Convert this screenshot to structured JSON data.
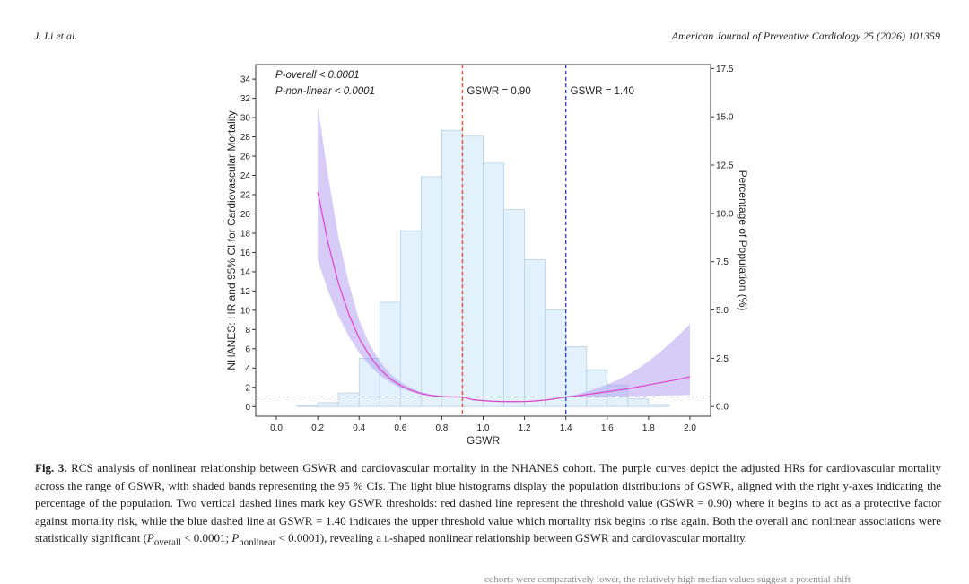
{
  "header": {
    "authors": "J. Li et al.",
    "journal": "American Journal of Preventive Cardiology 25 (2026) 101359"
  },
  "chart_data": {
    "type": "line",
    "xlabel": "GSWR",
    "ylabel_left": "NHANES: HR and 95% CI for Cardiovascular Mortality",
    "ylabel_right": "Percentage of Population (%)",
    "x_ticks": [
      "0.0",
      "0.2",
      "0.4",
      "0.6",
      "0.8",
      "1.0",
      "1.2",
      "1.4",
      "1.6",
      "1.8",
      "2.0"
    ],
    "y_left_ticks": [
      "0",
      "2",
      "4",
      "6",
      "8",
      "10",
      "12",
      "14",
      "16",
      "18",
      "20",
      "22",
      "24",
      "26",
      "28",
      "30",
      "32",
      "34"
    ],
    "y_right_ticks": [
      "0.0",
      "2.5",
      "5.0",
      "7.5",
      "10.0",
      "12.5",
      "15.0",
      "17.5"
    ],
    "xlim": [
      -0.1,
      2.1
    ],
    "ylim_left": [
      -1,
      35.5
    ],
    "ylim_right": [
      -0.5,
      17.7
    ],
    "annotations": {
      "p_overall": "P-overall < 0.0001",
      "p_nonlinear": "P-non-linear < 0.0001",
      "threshold_low_label": "GSWR = 0.90",
      "threshold_high_label": "GSWR = 1.40"
    },
    "thresholds": [
      {
        "x": 0.9,
        "color": "#d9552c",
        "label": "GSWR = 0.90"
      },
      {
        "x": 1.4,
        "color": "#3344cc",
        "label": "GSWR = 1.40"
      }
    ],
    "reference_hr": 1,
    "histogram": {
      "bin_edges": [
        0.1,
        0.2,
        0.3,
        0.4,
        0.5,
        0.6,
        0.7,
        0.8,
        0.9,
        1.0,
        1.1,
        1.2,
        1.3,
        1.4,
        1.5,
        1.6,
        1.7,
        1.8,
        1.9
      ],
      "percent": [
        0.05,
        0.2,
        0.7,
        2.5,
        5.4,
        9.1,
        11.9,
        14.3,
        14.0,
        12.6,
        10.2,
        7.6,
        5.0,
        3.1,
        1.9,
        1.1,
        0.4,
        0.1
      ]
    },
    "series": [
      {
        "name": "HR",
        "color": "#e040c8",
        "x": [
          0.2,
          0.25,
          0.3,
          0.35,
          0.4,
          0.45,
          0.5,
          0.55,
          0.6,
          0.65,
          0.7,
          0.75,
          0.8,
          0.85,
          0.9,
          0.95,
          1.0,
          1.05,
          1.1,
          1.15,
          1.2,
          1.25,
          1.3,
          1.35,
          1.4,
          1.45,
          1.5,
          1.55,
          1.6,
          1.65,
          1.7,
          1.75,
          1.8,
          1.85,
          1.9,
          1.95,
          2.0
        ],
        "y": [
          22.3,
          17.0,
          12.8,
          9.6,
          7.1,
          5.3,
          3.9,
          2.9,
          2.2,
          1.7,
          1.35,
          1.15,
          1.05,
          1.0,
          1.0,
          0.72,
          0.62,
          0.55,
          0.52,
          0.51,
          0.52,
          0.58,
          0.68,
          0.82,
          1.0,
          1.1,
          1.25,
          1.4,
          1.55,
          1.7,
          1.85,
          2.05,
          2.25,
          2.45,
          2.65,
          2.85,
          3.1
        ],
        "lower": [
          15.2,
          12.0,
          9.4,
          7.3,
          5.6,
          4.3,
          3.3,
          2.5,
          1.95,
          1.55,
          1.25,
          1.08,
          1.0,
          0.98,
          1.0,
          0.66,
          0.56,
          0.49,
          0.46,
          0.45,
          0.47,
          0.52,
          0.61,
          0.75,
          0.95,
          0.98,
          1.0,
          1.03,
          1.05,
          1.07,
          1.08,
          1.1,
          1.12,
          1.14,
          1.16,
          1.18,
          1.2
        ],
        "upper": [
          31.2,
          24.0,
          17.6,
          12.8,
          9.0,
          6.5,
          4.7,
          3.4,
          2.55,
          1.95,
          1.5,
          1.25,
          1.12,
          1.04,
          1.0,
          0.78,
          0.68,
          0.61,
          0.58,
          0.58,
          0.58,
          0.64,
          0.75,
          0.9,
          1.05,
          1.25,
          1.55,
          1.9,
          2.3,
          2.75,
          3.3,
          3.95,
          4.7,
          5.55,
          6.5,
          7.5,
          8.6
        ]
      }
    ]
  },
  "caption": {
    "label": "Fig. 3.",
    "text1": "RCS analysis of nonlinear relationship between GSWR and cardiovascular mortality in the NHANES cohort. The purple curves depict the adjusted HRs for cardiovascular mortality across the range of GSWR, with shaded bands representing the 95 % CIs. The light blue histograms display the population distributions of GSWR, aligned with the right y-axes indicating the percentage of the population. Two vertical dashed lines mark key GSWR thresholds: red dashed line represent the threshold value (GSWR = 0.90) where it begins to act as a protective factor against mortality risk, while the blue dashed line at GSWR = 1.40 indicates the upper threshold value which mortality risk begins to rise again. Both the overall and nonlinear associations were statistically significant (",
    "p_sym": "P",
    "sub1": "overall",
    "mid1": " < 0.0001; ",
    "sub2": "nonlinear",
    "mid2": " < 0.0001), revealing a ",
    "l_letter": "l",
    "text2": "-shaped nonlinear relationship between GSWR and cardiovascular mortality."
  },
  "next_text": "cohorts were comparatively lower, the relatively high median values suggest a potential shift"
}
